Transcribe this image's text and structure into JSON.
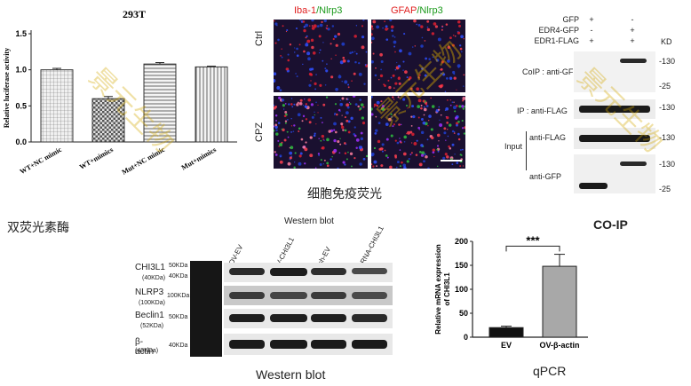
{
  "luciferase_chart": {
    "chart_data": {
      "type": "bar",
      "title": "293T",
      "ylabel": "Relative luciferase activity",
      "categories": [
        "WT+NC mimic",
        "WT+mimics",
        "Mut+NC mimic",
        "Mut+mimics"
      ],
      "values": [
        1.0,
        0.6,
        1.08,
        1.04
      ],
      "errors": [
        0.02,
        0.03,
        0.02,
        0.01
      ],
      "ylim": [
        0,
        1.5
      ],
      "yticks": [
        "0.0",
        "0.5",
        "1.0",
        "1.5"
      ],
      "colors": {
        "bar_fill": "#d8d8d8",
        "bar_stroke": "#333333"
      }
    },
    "caption": "双荧光素酶"
  },
  "if_panel": {
    "header_left_parts": [
      "Iba-1",
      "/Nlrp3"
    ],
    "header_right_parts": [
      "GFAP",
      "/Nlrp3"
    ],
    "rows": [
      "Ctrl",
      "CPZ"
    ],
    "caption": "细胞免疫荧光",
    "colors": {
      "red": "#e02020",
      "green": "#1a9a1a"
    }
  },
  "coip_panel": {
    "conditions": [
      {
        "label": "GFP",
        "marks": [
          "+",
          "-"
        ]
      },
      {
        "label": "EDR4-GFP",
        "marks": [
          "-",
          "+"
        ]
      },
      {
        "label": "EDR1-FLAG",
        "marks": [
          "+",
          "+"
        ]
      }
    ],
    "kd_header": "KD",
    "coip_label": "CoIP : anti-GFP",
    "ip_label": "IP : anti-FLAG",
    "input_label": "Input",
    "input_flag": "anti-FLAG",
    "input_gfp": "anti-GFP",
    "markers": {
      "m130a": "-130",
      "m25a": "-25",
      "m130b": "-130",
      "m130c": "-130",
      "m130d": "-130",
      "m25b": "-25"
    },
    "caption": "CO-IP"
  },
  "western_panel": {
    "header": "Western blot",
    "lanes": [
      "OV-EV",
      "OV-CHI3L1",
      "sh-EV",
      "shRNA-CHI3L1"
    ],
    "rows": [
      {
        "name": "CHI3L1",
        "sub": "(40KDa)",
        "kda": "50KDa",
        "kda2": "40KDa"
      },
      {
        "name": "NLRP3",
        "sub": "(100KDa)",
        "kda": "100KDa",
        "kda2": ""
      },
      {
        "name": "Beclin1",
        "sub": "(52KDa)",
        "kda": "50KDa",
        "kda2": ""
      },
      {
        "name": "β-actin",
        "sub": "(43KDa)",
        "kda": "40KDa",
        "kda2": ""
      }
    ],
    "caption": "Western blot"
  },
  "qpcr_chart": {
    "chart_data": {
      "type": "bar",
      "categories": [
        "EV",
        "OV-β-actin"
      ],
      "values": [
        20,
        148
      ],
      "errors": [
        3,
        25
      ],
      "ylim": [
        0,
        200
      ],
      "yticks": [
        "0",
        "50",
        "100",
        "150",
        "200"
      ],
      "ylabel": "Relative mRNA expression of CHI3L1",
      "significance": "***",
      "colors": {
        "bar_ev": "#111111",
        "bar_ov": "#a8a8a8"
      }
    },
    "caption": "qPCR"
  },
  "watermark": {
    "text": "景元生物",
    "color": "#d4a800"
  }
}
